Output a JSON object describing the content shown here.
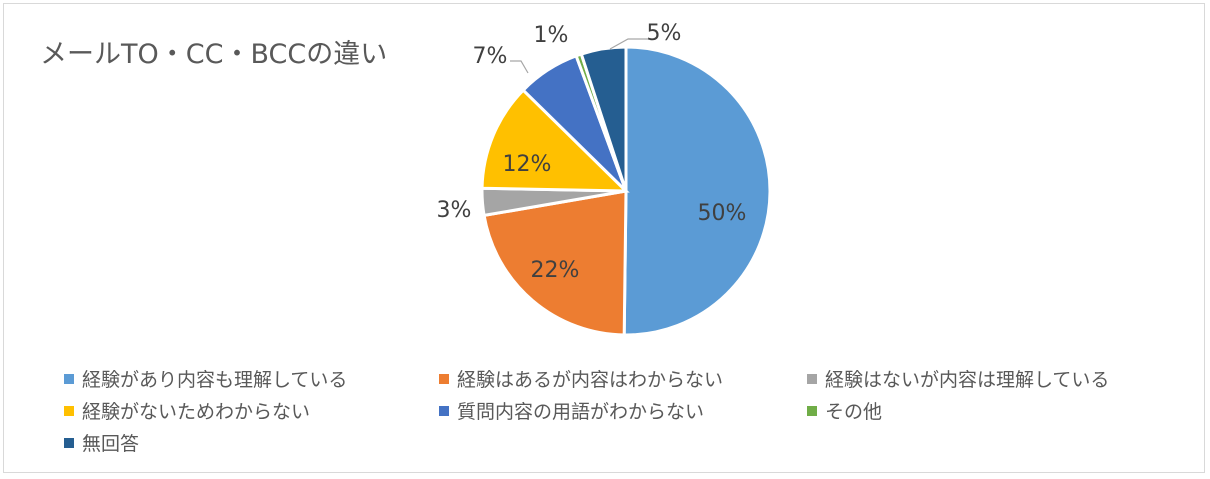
{
  "chart_data": {
    "type": "pie",
    "title": "メールTO・CC・BCCの違い",
    "slices": [
      {
        "label": "経験があり内容も理解している",
        "value": 50,
        "display": "50%",
        "color": "#5b9bd5"
      },
      {
        "label": "経験はあるが内容はわからない",
        "value": 22,
        "display": "22%",
        "color": "#ed7d31"
      },
      {
        "label": "経験はないが内容は理解している",
        "value": 3,
        "display": "3%",
        "color": "#a5a5a5"
      },
      {
        "label": "経験がないためわからない",
        "value": 12,
        "display": "12%",
        "color": "#ffc000"
      },
      {
        "label": "質問内容の用語がわからない",
        "value": 7,
        "display": "7%",
        "color": "#4472c4"
      },
      {
        "label": "その他",
        "value": 0.6,
        "display": "1%",
        "color": "#70ad47"
      },
      {
        "label": "無回答",
        "value": 5,
        "display": "5%",
        "color": "#255e91"
      }
    ],
    "legend_position": "bottom"
  }
}
